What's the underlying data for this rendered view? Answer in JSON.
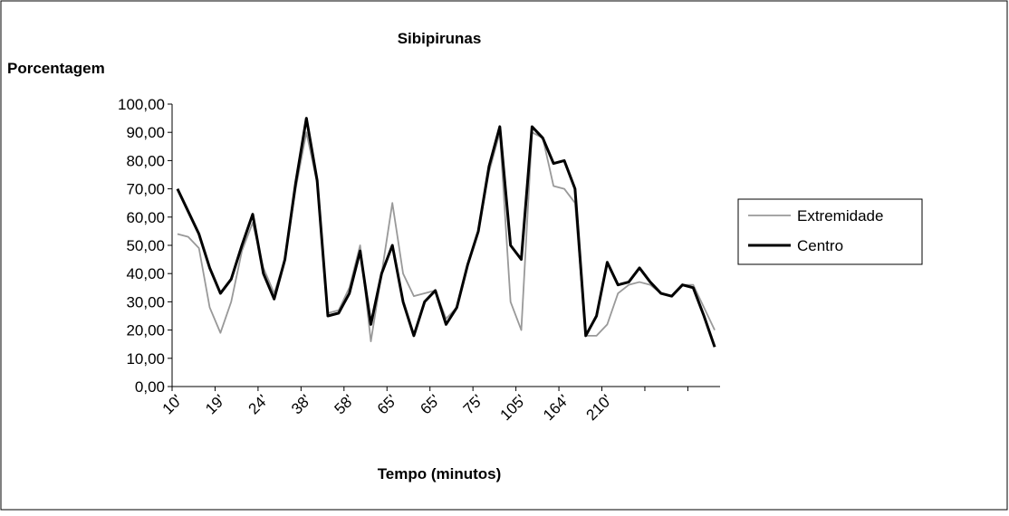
{
  "chart_data": {
    "type": "line",
    "title": "Sibipirunas",
    "y_label": "Porcentagem",
    "x_label": "Tempo (minutos)",
    "categories": [
      "10'",
      null,
      null,
      null,
      "19'",
      null,
      null,
      null,
      "24'",
      null,
      null,
      null,
      "38'",
      null,
      null,
      null,
      "58'",
      null,
      null,
      null,
      "65'",
      null,
      null,
      null,
      "65'",
      null,
      null,
      null,
      "75'",
      null,
      null,
      null,
      "105'",
      null,
      null,
      null,
      "164'",
      null,
      null,
      null,
      "210'",
      null,
      null,
      null,
      null,
      null,
      null,
      null,
      null,
      null,
      null
    ],
    "series": [
      {
        "name": "Extremidade",
        "color": "#999999",
        "values": [
          54,
          53,
          49,
          28,
          19,
          30,
          48,
          58,
          42,
          33,
          45,
          70,
          90,
          72,
          26,
          27,
          35,
          50,
          16,
          40,
          65,
          40,
          32,
          33,
          34,
          24,
          28,
          43,
          55,
          76,
          90,
          30,
          20,
          90,
          88,
          71,
          70,
          65,
          18,
          18,
          22,
          33,
          36,
          37,
          36,
          33,
          32,
          36,
          36,
          28,
          20
        ]
      },
      {
        "name": "Centro",
        "color": "#000000",
        "values": [
          70,
          62,
          54,
          42,
          33,
          38,
          50,
          61,
          40,
          31,
          45,
          72,
          95,
          73,
          25,
          26,
          33,
          48,
          22,
          40,
          50,
          30,
          18,
          30,
          34,
          22,
          28,
          43,
          55,
          78,
          92,
          50,
          45,
          92,
          88,
          79,
          80,
          70,
          18,
          25,
          44,
          36,
          37,
          42,
          37,
          33,
          32,
          36,
          35,
          25,
          14
        ]
      }
    ],
    "ylim": [
      0,
      100
    ],
    "yticks": [
      {
        "value": 0,
        "label": "0,00"
      },
      {
        "value": 10,
        "label": "10,00"
      },
      {
        "value": 20,
        "label": "20,00"
      },
      {
        "value": 30,
        "label": "30,00"
      },
      {
        "value": 40,
        "label": "40,00"
      },
      {
        "value": 50,
        "label": "50,00"
      },
      {
        "value": 60,
        "label": "60,00"
      },
      {
        "value": 70,
        "label": "70,00"
      },
      {
        "value": 80,
        "label": "80,00"
      },
      {
        "value": 90,
        "label": "90,00"
      },
      {
        "value": 100,
        "label": "100,00"
      }
    ],
    "legend": "right"
  }
}
